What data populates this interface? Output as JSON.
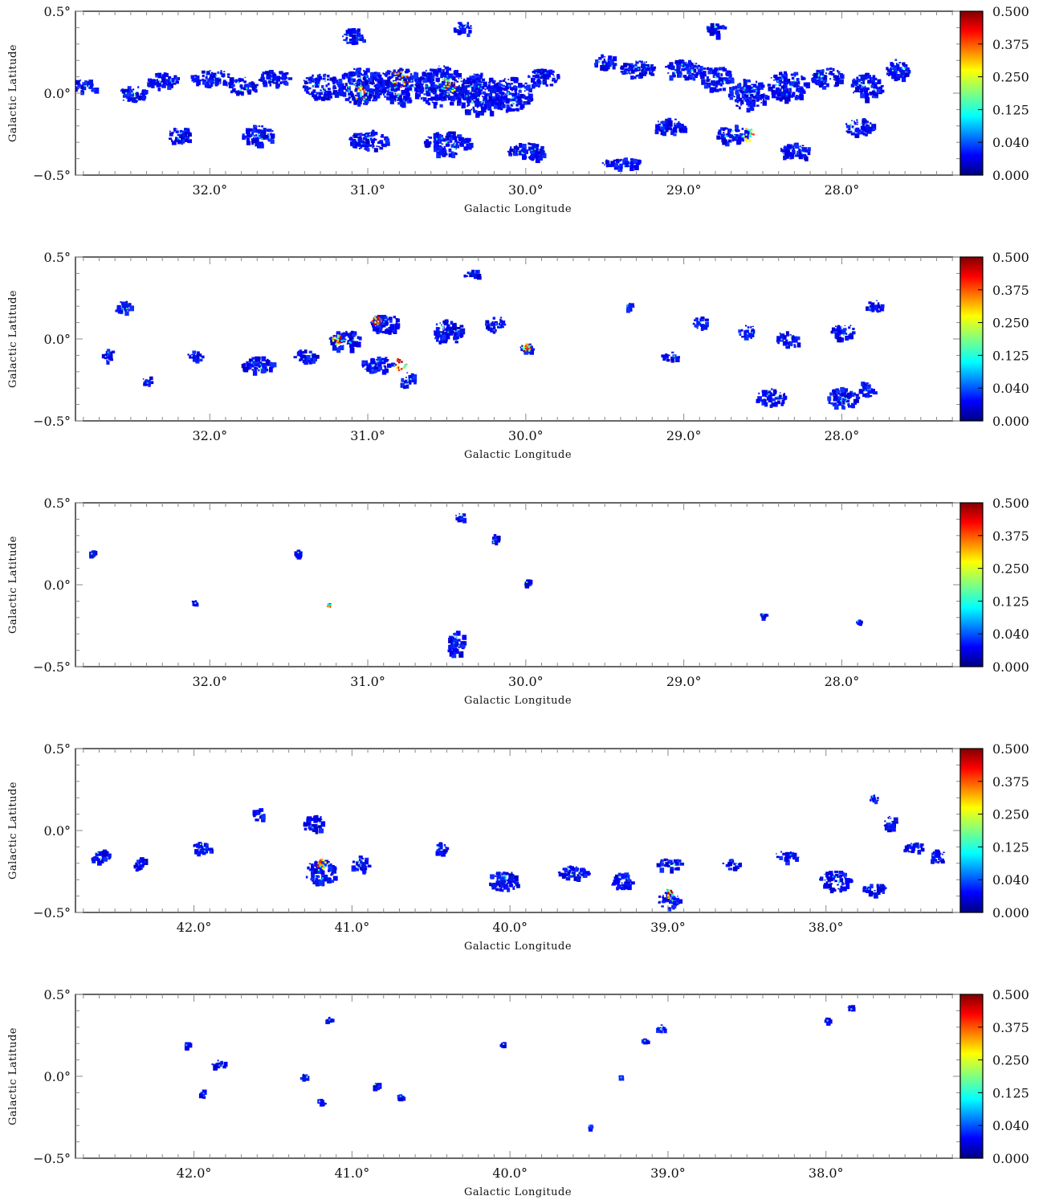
{
  "chart_data": [
    {
      "type": "heatmap",
      "panel": 1,
      "xlabel": "Galactic Longitude",
      "ylabel": "Galactic Latitude",
      "xlim": [
        32.85,
        27.25
      ],
      "ylim": [
        -0.5,
        0.5
      ],
      "xticks": [
        32.0,
        31.0,
        30.0,
        29.0,
        28.0
      ],
      "xtick_labels": [
        "32.0°",
        "31.0°",
        "30.0°",
        "29.0°",
        "28.0°"
      ],
      "yticks": [
        -0.5,
        0.0,
        0.5
      ],
      "ytick_labels": [
        "−0.5°",
        "0.0°",
        "0.5°"
      ],
      "colorbar_ticks": [
        "0.500",
        "0.375",
        "0.250",
        "0.125",
        "0.040",
        "0.000"
      ],
      "clumps": [
        [
          32.8,
          0.05,
          0.15,
          0.08
        ],
        [
          32.5,
          0.0,
          0.18,
          0.1
        ],
        [
          32.3,
          0.08,
          0.2,
          0.1
        ],
        [
          32.0,
          0.1,
          0.25,
          0.1
        ],
        [
          31.8,
          0.05,
          0.2,
          0.1
        ],
        [
          31.6,
          0.1,
          0.2,
          0.1
        ],
        [
          31.7,
          -0.25,
          0.2,
          0.12
        ],
        [
          32.2,
          -0.25,
          0.15,
          0.1
        ],
        [
          31.3,
          0.05,
          0.25,
          0.15
        ],
        [
          31.05,
          0.05,
          0.3,
          0.22
        ],
        [
          30.8,
          0.05,
          0.3,
          0.22
        ],
        [
          30.55,
          0.05,
          0.3,
          0.25
        ],
        [
          30.3,
          0.0,
          0.3,
          0.25
        ],
        [
          30.1,
          0.0,
          0.25,
          0.2
        ],
        [
          31.0,
          -0.28,
          0.25,
          0.12
        ],
        [
          30.5,
          -0.3,
          0.3,
          0.14
        ],
        [
          30.0,
          -0.35,
          0.25,
          0.1
        ],
        [
          30.4,
          0.4,
          0.12,
          0.08
        ],
        [
          31.1,
          0.35,
          0.15,
          0.1
        ],
        [
          29.9,
          0.1,
          0.2,
          0.12
        ],
        [
          29.5,
          0.2,
          0.15,
          0.08
        ],
        [
          29.3,
          0.15,
          0.25,
          0.1
        ],
        [
          29.0,
          0.15,
          0.25,
          0.12
        ],
        [
          28.8,
          0.1,
          0.2,
          0.15
        ],
        [
          28.6,
          0.0,
          0.25,
          0.18
        ],
        [
          28.35,
          0.05,
          0.25,
          0.18
        ],
        [
          28.1,
          0.1,
          0.2,
          0.12
        ],
        [
          27.85,
          0.05,
          0.2,
          0.15
        ],
        [
          27.65,
          0.15,
          0.15,
          0.12
        ],
        [
          28.7,
          -0.25,
          0.2,
          0.12
        ],
        [
          29.1,
          -0.2,
          0.2,
          0.1
        ],
        [
          29.4,
          -0.42,
          0.25,
          0.06
        ],
        [
          28.3,
          -0.35,
          0.2,
          0.1
        ],
        [
          27.9,
          -0.2,
          0.2,
          0.1
        ],
        [
          28.8,
          0.4,
          0.12,
          0.08
        ]
      ],
      "hotspots": [
        [
          30.8,
          0.1,
          0.12
        ],
        [
          30.5,
          0.05,
          0.1
        ],
        [
          31.05,
          0.0,
          0.1
        ],
        [
          28.6,
          -0.25,
          0.08
        ]
      ]
    },
    {
      "type": "heatmap",
      "panel": 2,
      "xlabel": "Galactic Longitude",
      "ylabel": "Galactic Latitude",
      "xlim": [
        32.85,
        27.25
      ],
      "ylim": [
        -0.5,
        0.5
      ],
      "xticks": [
        32.0,
        31.0,
        30.0,
        29.0,
        28.0
      ],
      "xtick_labels": [
        "32.0°",
        "31.0°",
        "30.0°",
        "29.0°",
        "28.0°"
      ],
      "yticks": [
        -0.5,
        0.0,
        0.5
      ],
      "ytick_labels": [
        "−0.5°",
        "0.0°",
        "0.5°"
      ],
      "colorbar_ticks": [
        "0.500",
        "0.375",
        "0.250",
        "0.125",
        "0.040",
        "0.000"
      ],
      "clumps": [
        [
          32.55,
          0.2,
          0.12,
          0.08
        ],
        [
          32.65,
          -0.1,
          0.08,
          0.08
        ],
        [
          32.4,
          -0.25,
          0.06,
          0.06
        ],
        [
          32.1,
          -0.1,
          0.1,
          0.06
        ],
        [
          31.7,
          -0.15,
          0.2,
          0.1
        ],
        [
          31.4,
          -0.1,
          0.15,
          0.08
        ],
        [
          31.15,
          0.0,
          0.2,
          0.12
        ],
        [
          30.9,
          0.1,
          0.18,
          0.12
        ],
        [
          30.95,
          -0.15,
          0.2,
          0.1
        ],
        [
          30.75,
          -0.25,
          0.1,
          0.1
        ],
        [
          30.5,
          0.05,
          0.2,
          0.15
        ],
        [
          30.35,
          0.4,
          0.1,
          0.06
        ],
        [
          30.2,
          0.1,
          0.12,
          0.1
        ],
        [
          30.0,
          -0.05,
          0.1,
          0.06
        ],
        [
          29.35,
          0.2,
          0.08,
          0.05
        ],
        [
          29.1,
          -0.1,
          0.12,
          0.05
        ],
        [
          28.9,
          0.1,
          0.1,
          0.08
        ],
        [
          28.6,
          0.05,
          0.12,
          0.08
        ],
        [
          28.35,
          0.0,
          0.15,
          0.1
        ],
        [
          28.0,
          0.05,
          0.15,
          0.1
        ],
        [
          27.8,
          0.2,
          0.1,
          0.08
        ],
        [
          28.45,
          -0.35,
          0.2,
          0.1
        ],
        [
          28.0,
          -0.35,
          0.2,
          0.12
        ],
        [
          27.85,
          -0.3,
          0.1,
          0.1
        ]
      ],
      "hotspots": [
        [
          30.8,
          -0.15,
          0.08
        ],
        [
          31.2,
          0.0,
          0.06
        ],
        [
          30.95,
          0.12,
          0.06
        ],
        [
          30.0,
          -0.05,
          0.05
        ]
      ]
    },
    {
      "type": "heatmap",
      "panel": 3,
      "xlabel": "Galactic Longitude",
      "ylabel": "Galactic Latitude",
      "xlim": [
        32.85,
        27.25
      ],
      "ylim": [
        -0.5,
        0.5
      ],
      "xticks": [
        32.0,
        31.0,
        30.0,
        29.0,
        28.0
      ],
      "xtick_labels": [
        "32.0°",
        "31.0°",
        "30.0°",
        "29.0°",
        "28.0°"
      ],
      "yticks": [
        -0.5,
        0.0,
        0.5
      ],
      "ytick_labels": [
        "−0.5°",
        "0.0°",
        "0.5°"
      ],
      "colorbar_ticks": [
        "0.500",
        "0.375",
        "0.250",
        "0.125",
        "0.040",
        "0.000"
      ],
      "clumps": [
        [
          30.45,
          -0.35,
          0.12,
          0.14
        ],
        [
          30.42,
          0.42,
          0.06,
          0.05
        ],
        [
          30.2,
          0.28,
          0.06,
          0.06
        ],
        [
          32.75,
          0.2,
          0.04,
          0.03
        ],
        [
          31.45,
          0.2,
          0.04,
          0.03
        ],
        [
          32.1,
          -0.1,
          0.03,
          0.03
        ],
        [
          28.5,
          -0.18,
          0.04,
          0.02
        ],
        [
          27.9,
          -0.22,
          0.03,
          0.02
        ],
        [
          30.0,
          0.02,
          0.05,
          0.03
        ]
      ],
      "hotspots": [
        [
          31.25,
          -0.12,
          0.02
        ]
      ]
    },
    {
      "type": "heatmap",
      "panel": 4,
      "xlabel": "Galactic Longitude",
      "ylabel": "Galactic Latitude",
      "xlim": [
        42.75,
        37.15
      ],
      "ylim": [
        -0.5,
        0.5
      ],
      "xticks": [
        42.0,
        41.0,
        40.0,
        39.0,
        38.0
      ],
      "xtick_labels": [
        "42.0°",
        "41.0°",
        "40.0°",
        "39.0°",
        "38.0°"
      ],
      "yticks": [
        -0.5,
        0.0,
        0.5
      ],
      "ytick_labels": [
        "−0.5°",
        "0.0°",
        "0.5°"
      ],
      "colorbar_ticks": [
        "0.500",
        "0.375",
        "0.250",
        "0.125",
        "0.040",
        "0.000"
      ],
      "clumps": [
        [
          42.6,
          -0.15,
          0.12,
          0.08
        ],
        [
          42.35,
          -0.2,
          0.1,
          0.08
        ],
        [
          41.95,
          -0.1,
          0.12,
          0.08
        ],
        [
          41.6,
          0.1,
          0.08,
          0.08
        ],
        [
          41.25,
          0.05,
          0.15,
          0.1
        ],
        [
          41.2,
          -0.25,
          0.2,
          0.15
        ],
        [
          40.95,
          -0.2,
          0.12,
          0.1
        ],
        [
          40.45,
          -0.1,
          0.1,
          0.06
        ],
        [
          40.05,
          -0.3,
          0.2,
          0.12
        ],
        [
          39.6,
          -0.25,
          0.2,
          0.08
        ],
        [
          39.3,
          -0.3,
          0.15,
          0.1
        ],
        [
          39.0,
          -0.42,
          0.15,
          0.1
        ],
        [
          39.0,
          -0.2,
          0.15,
          0.08
        ],
        [
          38.6,
          -0.2,
          0.12,
          0.06
        ],
        [
          38.25,
          -0.15,
          0.15,
          0.06
        ],
        [
          37.95,
          -0.3,
          0.2,
          0.12
        ],
        [
          37.7,
          -0.35,
          0.15,
          0.06
        ],
        [
          37.6,
          0.05,
          0.1,
          0.08
        ],
        [
          37.45,
          -0.1,
          0.15,
          0.06
        ],
        [
          37.3,
          -0.15,
          0.1,
          0.08
        ],
        [
          37.7,
          0.2,
          0.06,
          0.05
        ]
      ],
      "hotspots": [
        [
          41.2,
          -0.2,
          0.06
        ],
        [
          39.0,
          -0.38,
          0.05
        ]
      ]
    },
    {
      "type": "heatmap",
      "panel": 5,
      "xlabel": "Galactic Longitude",
      "ylabel": "Galactic Latitude",
      "xlim": [
        42.75,
        37.15
      ],
      "ylim": [
        -0.5,
        0.5
      ],
      "xticks": [
        42.0,
        41.0,
        40.0,
        39.0,
        38.0
      ],
      "xtick_labels": [
        "42.0°",
        "41.0°",
        "40.0°",
        "39.0°",
        "38.0°"
      ],
      "yticks": [
        -0.5,
        0.0,
        0.5
      ],
      "ytick_labels": [
        "−0.5°",
        "0.0°",
        "0.5°"
      ],
      "colorbar_ticks": [
        "0.500",
        "0.375",
        "0.250",
        "0.125",
        "0.040",
        "0.000"
      ],
      "clumps": [
        [
          41.85,
          0.08,
          0.08,
          0.06
        ],
        [
          41.95,
          -0.1,
          0.05,
          0.04
        ],
        [
          41.3,
          0.0,
          0.06,
          0.04
        ],
        [
          41.2,
          -0.15,
          0.05,
          0.06
        ],
        [
          41.15,
          0.35,
          0.04,
          0.03
        ],
        [
          40.85,
          -0.05,
          0.04,
          0.03
        ],
        [
          40.7,
          -0.12,
          0.04,
          0.03
        ],
        [
          40.05,
          0.2,
          0.03,
          0.04
        ],
        [
          39.05,
          0.3,
          0.06,
          0.04
        ],
        [
          39.15,
          0.22,
          0.04,
          0.03
        ],
        [
          37.85,
          0.42,
          0.03,
          0.04
        ],
        [
          38.0,
          0.35,
          0.03,
          0.02
        ],
        [
          42.05,
          0.2,
          0.03,
          0.03
        ],
        [
          39.3,
          0.0,
          0.03,
          0.02
        ],
        [
          39.5,
          -0.3,
          0.02,
          0.02
        ]
      ],
      "hotspots": []
    }
  ]
}
